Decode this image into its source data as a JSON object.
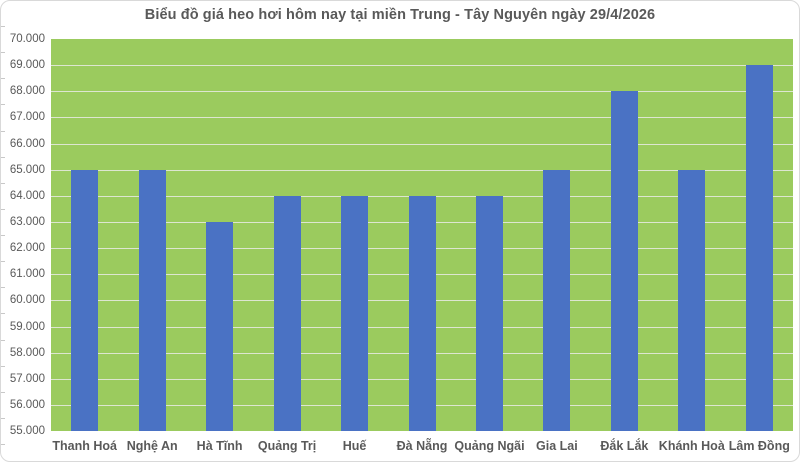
{
  "colors": {
    "plot_bg": "#9bcb5e",
    "bar": "#4a72c4",
    "gridline": "#dde6d0",
    "text": "#595959",
    "frame_border": "#d9d9d9",
    "axis_tick": "#c8c8c8"
  },
  "chart_data": {
    "type": "bar",
    "title": "Biểu đồ giá heo hơi hôm nay tại miền Trung - Tây Nguyên ngày 29/4/2026",
    "categories": [
      "Thanh Hoá",
      "Nghệ An",
      "Hà Tĩnh",
      "Quảng Trị",
      "Huế",
      "Đà Nẵng",
      "Quảng Ngãi",
      "Gia Lai",
      "Đắk Lắk",
      "Khánh Hoà",
      "Lâm Đồng"
    ],
    "values": [
      65000,
      65000,
      63000,
      64000,
      64000,
      64000,
      64000,
      65000,
      68000,
      65000,
      69000
    ],
    "xlabel": "",
    "ylabel": "",
    "ylim": [
      55000,
      70000
    ],
    "ytick_step": 1000,
    "ytick_labels": [
      "70.000",
      "69.000",
      "68.000",
      "67.000",
      "66.000",
      "65.000",
      "64.000",
      "63.000",
      "62.000",
      "61.000",
      "60.000",
      "59.000",
      "58.000",
      "57.000",
      "56.000",
      "55.000"
    ],
    "grid": true,
    "legend": "none",
    "plot_area_background": "green"
  }
}
